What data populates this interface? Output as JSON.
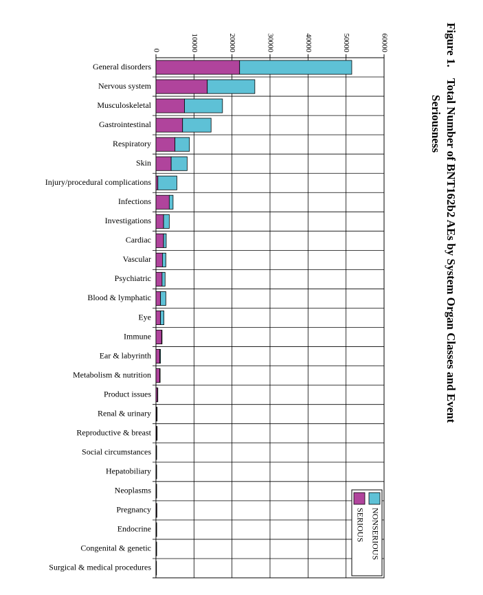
{
  "figure": {
    "label": "Figure 1.",
    "title_line1": "Total Number of BNT162b2 AEs by System Organ Classes and Event",
    "title_line2": "Seriousness"
  },
  "chart_data": {
    "type": "bar",
    "orientation": "horizontal-stacked",
    "categories": [
      "General disorders",
      "Nervous system",
      "Musculoskeletal",
      "Gastrointestinal",
      "Respiratory",
      "Skin",
      "Injury/procedural complications",
      "Infections",
      "Investigations",
      "Cardiac",
      "Vascular",
      "Psychiatric",
      "Blood & lymphatic",
      "Eye",
      "Immune",
      "Ear & labyrinth",
      "Metabolism & nutrition",
      "Product issues",
      "Renal & urinary",
      "Reproductive & breast",
      "Social circumstances",
      "Hepatobiliary",
      "Neoplasms",
      "Pregnancy",
      "Endocrine",
      "Congenital & genetic",
      "Surgical & medical procedures"
    ],
    "series": [
      {
        "name": "SERIOUS",
        "color": "#b0449c",
        "values": [
          22000,
          13500,
          7500,
          7000,
          5000,
          4000,
          500,
          3500,
          2000,
          2000,
          1700,
          1600,
          1200,
          1200,
          1500,
          1000,
          1000,
          400,
          200,
          200,
          100,
          100,
          100,
          150,
          100,
          100,
          50
        ]
      },
      {
        "name": "NONSERIOUS",
        "color": "#5ec1d6",
        "values": [
          29500,
          12500,
          10000,
          7500,
          3800,
          4200,
          5000,
          1000,
          1500,
          700,
          900,
          800,
          1400,
          900,
          100,
          200,
          100,
          50,
          100,
          100,
          50,
          50,
          50,
          50,
          100,
          50,
          50
        ]
      }
    ],
    "xlim": [
      0,
      60000
    ],
    "xticks": [
      "0",
      "10000",
      "20000",
      "30000",
      "40000",
      "50000",
      "60000"
    ],
    "grid": true,
    "legend_position": "bottom-right"
  }
}
